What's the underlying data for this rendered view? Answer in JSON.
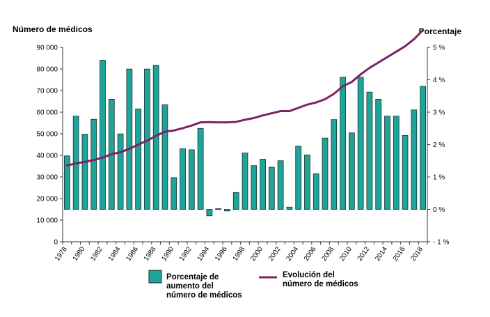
{
  "chart_data": {
    "type": "bar",
    "y_left_label": "Número de médicos",
    "y_right_label": "Porcentaje",
    "y_left_ticks": [
      "0",
      "10 000",
      "20 000",
      "30 000",
      "40 000",
      "50 000",
      "60 000",
      "70 000",
      "80 000",
      "90 000"
    ],
    "y_right_ticks": [
      "- 1 %",
      "0 %",
      "1 %",
      "2 %",
      "3 %",
      "4 %",
      "5 %"
    ],
    "y_left_lim": [
      0,
      90000
    ],
    "y_right_lim": [
      -1,
      5
    ],
    "x_tick_labels": [
      "1978",
      "1980",
      "1982",
      "1984",
      "1986",
      "1988",
      "1990",
      "1992",
      "1994",
      "1996",
      "1998",
      "2000",
      "2002",
      "2004",
      "2006",
      "2008",
      "2010",
      "2012",
      "2014",
      "2016",
      "2018"
    ],
    "years": [
      1978,
      1979,
      1980,
      1981,
      1982,
      1983,
      1984,
      1985,
      1986,
      1987,
      1988,
      1989,
      1990,
      1991,
      1992,
      1993,
      1994,
      1995,
      1996,
      1997,
      1998,
      1999,
      2000,
      2001,
      2002,
      2003,
      2004,
      2005,
      2006,
      2007,
      2008,
      2009,
      2010,
      2011,
      2012,
      2013,
      2014,
      2015,
      2016,
      2017,
      2018
    ],
    "series": [
      {
        "name": "Porcentaje de aumento del número de médicos",
        "type": "bar",
        "axis": "right",
        "color": "#1fa49a",
        "values": [
          1.65,
          2.88,
          2.32,
          2.78,
          4.6,
          3.4,
          2.33,
          4.33,
          3.1,
          4.33,
          4.45,
          3.23,
          0.98,
          1.87,
          1.84,
          2.5,
          -0.2,
          0.02,
          -0.05,
          0.52,
          1.74,
          1.35,
          1.55,
          1.3,
          1.5,
          0.07,
          1.95,
          1.68,
          1.1,
          2.2,
          2.77,
          4.08,
          2.36,
          4.08,
          3.62,
          3.4,
          2.88,
          2.88,
          2.28,
          3.07,
          3.8
        ]
      },
      {
        "name": "Evolución del número de médicos",
        "type": "line",
        "axis": "left",
        "color": "#7b2367",
        "values": [
          35300,
          36300,
          37000,
          37800,
          39000,
          40500,
          41500,
          43000,
          45000,
          46800,
          49000,
          51000,
          51500,
          52600,
          53800,
          55300,
          55400,
          55300,
          55300,
          55500,
          56500,
          57300,
          58500,
          59500,
          60500,
          60500,
          62000,
          63500,
          64500,
          66000,
          68500,
          72000,
          74000,
          77500,
          80500,
          83000,
          85500,
          88000,
          90500,
          93800,
          98000
        ]
      }
    ],
    "legend": {
      "position": "bottom",
      "bar_label_lines": [
        "Porcentaje de",
        "aumento del",
        "número de médicos"
      ],
      "line_label_lines": [
        "Evolución del",
        "número de médicos"
      ]
    },
    "grid": false
  }
}
